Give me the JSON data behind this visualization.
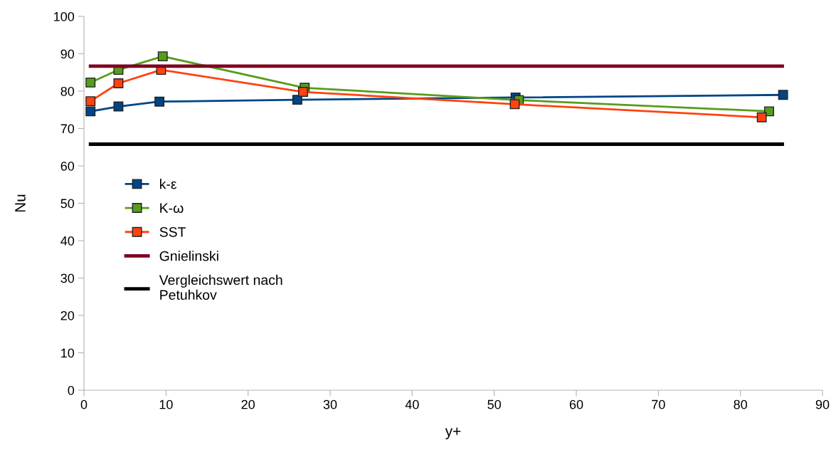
{
  "chart_data": {
    "type": "line",
    "xlabel": "y+",
    "ylabel": "Nu",
    "xlim": [
      0,
      90
    ],
    "xticks": [
      0,
      10,
      20,
      30,
      40,
      50,
      60,
      70,
      80,
      90
    ],
    "ylim": [
      0,
      100
    ],
    "yticks": [
      0,
      10,
      20,
      30,
      40,
      50,
      60,
      70,
      80,
      90,
      100
    ],
    "grid": false,
    "legend": "left",
    "marker": "square",
    "line_style": "solid",
    "series": [
      {
        "name": "k-ε",
        "color": "#004586",
        "x": [
          0.8,
          4.2,
          9.2,
          26.0,
          52.6,
          85.2
        ],
        "values": [
          74.6,
          75.9,
          77.2,
          77.7,
          78.3,
          79.0
        ]
      },
      {
        "name": "K-ω",
        "color": "#579d1c",
        "x": [
          0.8,
          4.2,
          9.6,
          26.9,
          53.0,
          83.5
        ],
        "values": [
          82.3,
          85.7,
          89.3,
          80.9,
          77.6,
          74.6
        ]
      },
      {
        "name": "SST",
        "color": "#ff420e",
        "x": [
          0.8,
          4.2,
          9.4,
          26.7,
          52.5,
          82.6
        ],
        "values": [
          77.3,
          82.1,
          85.7,
          79.8,
          76.5,
          73.0
        ]
      },
      {
        "name": "Gnielinski",
        "color": "#7e0021",
        "marker": "none",
        "x": [
          0.8,
          85.1
        ],
        "values": [
          86.7,
          86.7
        ]
      },
      {
        "name": "Vergleichswert nach\nPetuhkov",
        "color": "#000000",
        "marker": "none",
        "x": [
          0.8,
          85.1
        ],
        "values": [
          65.8,
          65.8
        ]
      }
    ]
  }
}
